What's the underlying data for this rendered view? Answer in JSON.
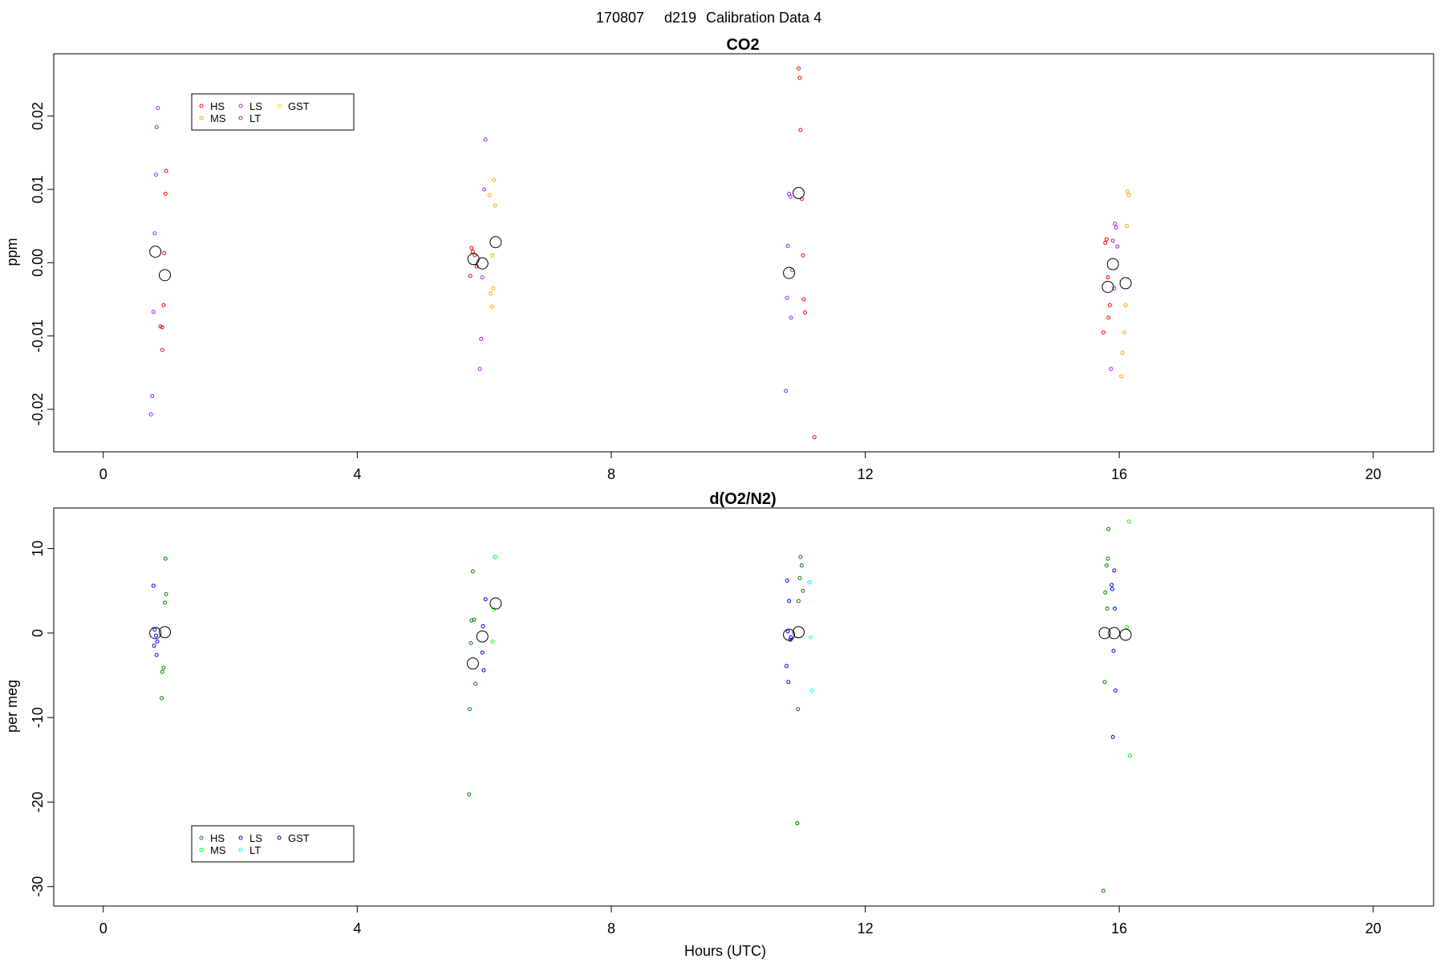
{
  "figure": {
    "header": [
      "170807",
      "d219",
      "Calibration Data 4"
    ],
    "xlabel": "Hours (UTC)"
  },
  "chart_data": [
    {
      "type": "scatter",
      "title": "CO2",
      "xlabel": "",
      "ylabel": "ppm",
      "xlim": [
        -0.78,
        20.95
      ],
      "ylim": [
        -0.0258,
        0.0285
      ],
      "x_ticks": [
        0,
        4,
        8,
        12,
        16,
        20
      ],
      "x_tick_labels": [
        "0",
        "4",
        "8",
        "12",
        "16",
        "20"
      ],
      "y_ticks": [
        -0.02,
        -0.01,
        0.0,
        0.01,
        0.02
      ],
      "y_tick_labels": [
        "-0.02",
        "-0.01",
        "0.00",
        "0.01",
        "0.02"
      ],
      "grid": false,
      "legend": {
        "position": "top-left",
        "columns": 3
      },
      "series": [
        {
          "name": "HS",
          "color": "#ff0000",
          "points": [
            [
              0.99,
              0.0125
            ],
            [
              0.98,
              0.0094
            ],
            [
              0.96,
              0.0013
            ],
            [
              0.95,
              -0.0058
            ],
            [
              0.93,
              -0.0088
            ],
            [
              0.9,
              -0.0087
            ],
            [
              0.93,
              -0.0119
            ],
            [
              5.8,
              0.002
            ],
            [
              5.82,
              0.0015
            ],
            [
              5.85,
              0.001
            ],
            [
              5.88,
              -0.0005
            ],
            [
              5.78,
              -0.0018
            ],
            [
              10.95,
              0.0265
            ],
            [
              10.97,
              0.0252
            ],
            [
              10.98,
              0.0181
            ],
            [
              11.0,
              0.0087
            ],
            [
              11.02,
              0.001
            ],
            [
              11.03,
              -0.005
            ],
            [
              11.05,
              -0.0068
            ],
            [
              11.2,
              -0.0238
            ],
            [
              15.8,
              0.0032
            ],
            [
              15.78,
              0.0027
            ],
            [
              15.82,
              -0.002
            ],
            [
              15.85,
              -0.0058
            ],
            [
              15.83,
              -0.0075
            ],
            [
              15.75,
              -0.0095
            ]
          ]
        },
        {
          "name": "MS",
          "color": "#ffa500",
          "points": [
            [
              6.15,
              0.0113
            ],
            [
              6.08,
              0.0092
            ],
            [
              6.17,
              0.0078
            ],
            [
              6.13,
              0.001
            ],
            [
              6.14,
              -0.0035
            ],
            [
              6.1,
              -0.0042
            ],
            [
              6.12,
              -0.006
            ],
            [
              16.13,
              0.0097
            ],
            [
              16.15,
              0.0092
            ],
            [
              16.12,
              0.005
            ],
            [
              16.1,
              -0.0058
            ],
            [
              16.08,
              -0.0095
            ],
            [
              16.05,
              -0.0123
            ],
            [
              16.03,
              -0.0155
            ]
          ]
        },
        {
          "name": "LS",
          "color": "#a020f0",
          "points": [
            [
              0.86,
              0.0211
            ],
            [
              0.84,
              0.0185
            ],
            [
              0.83,
              0.012
            ],
            [
              0.81,
              0.004
            ],
            [
              0.79,
              -0.0067
            ],
            [
              0.77,
              -0.0182
            ],
            [
              0.75,
              -0.0207
            ],
            [
              6.02,
              0.0168
            ],
            [
              6.0,
              0.01
            ],
            [
              5.97,
              -0.002
            ],
            [
              5.95,
              -0.0104
            ],
            [
              5.93,
              -0.0145
            ],
            [
              10.8,
              0.0094
            ],
            [
              10.82,
              0.009
            ],
            [
              10.78,
              0.0023
            ],
            [
              10.85,
              -0.001
            ],
            [
              10.77,
              -0.0048
            ],
            [
              10.83,
              -0.0075
            ],
            [
              10.75,
              -0.0175
            ],
            [
              15.93,
              0.0053
            ],
            [
              15.95,
              0.0048
            ],
            [
              15.9,
              0.003
            ],
            [
              15.97,
              0.0022
            ],
            [
              15.92,
              -0.0035
            ],
            [
              15.87,
              -0.0145
            ]
          ]
        },
        {
          "name": "LT",
          "color": "#b22222",
          "points": []
        },
        {
          "name": "GST",
          "color": "#ffd700",
          "points": []
        }
      ],
      "means": [
        [
          0.82,
          0.0015
        ],
        [
          0.97,
          -0.0017
        ],
        [
          5.83,
          0.0005
        ],
        [
          5.97,
          -0.0001
        ],
        [
          6.18,
          0.0028
        ],
        [
          10.8,
          -0.0014
        ],
        [
          10.95,
          0.0095
        ],
        [
          15.82,
          -0.0033
        ],
        [
          15.9,
          -0.0002
        ],
        [
          16.1,
          -0.0028
        ]
      ]
    },
    {
      "type": "scatter",
      "title": "d(O2/N2)",
      "xlabel": "Hours (UTC)",
      "ylabel": "per meg",
      "xlim": [
        -0.78,
        20.95
      ],
      "ylim": [
        -32.3,
        14.8
      ],
      "x_ticks": [
        0,
        4,
        8,
        12,
        16,
        20
      ],
      "x_tick_labels": [
        "0",
        "4",
        "8",
        "12",
        "16",
        "20"
      ],
      "y_ticks": [
        -30,
        -20,
        -10,
        0,
        10
      ],
      "y_tick_labels": [
        "-30",
        "-20",
        "-10",
        "0",
        "10"
      ],
      "grid": false,
      "legend": {
        "position": "bottom-left",
        "columns": 3
      },
      "series": [
        {
          "name": "HS",
          "color": "#008000",
          "points": [
            [
              0.98,
              8.8
            ],
            [
              0.99,
              4.6
            ],
            [
              0.97,
              3.6
            ],
            [
              0.95,
              -4.1
            ],
            [
              0.93,
              -4.6
            ],
            [
              0.92,
              -7.7
            ],
            [
              5.82,
              7.3
            ],
            [
              5.84,
              1.6
            ],
            [
              5.8,
              1.5
            ],
            [
              5.79,
              -1.2
            ],
            [
              5.86,
              -6.0
            ],
            [
              5.77,
              -9.0
            ],
            [
              5.76,
              -19.1
            ],
            [
              10.98,
              9.0
            ],
            [
              11.0,
              8.0
            ],
            [
              10.97,
              6.5
            ],
            [
              11.02,
              5.0
            ],
            [
              10.95,
              3.8
            ],
            [
              10.94,
              -9.0
            ],
            [
              10.93,
              -22.5
            ],
            [
              15.83,
              12.3
            ],
            [
              15.82,
              8.8
            ],
            [
              15.8,
              8.0
            ],
            [
              15.78,
              4.8
            ],
            [
              15.81,
              2.9
            ],
            [
              15.77,
              -5.8
            ],
            [
              15.75,
              -30.5
            ]
          ]
        },
        {
          "name": "MS",
          "color": "#00ff00",
          "points": [
            [
              6.17,
              9.0
            ],
            [
              6.15,
              2.8
            ],
            [
              6.13,
              -1.0
            ],
            [
              16.15,
              13.2
            ],
            [
              16.12,
              0.7
            ],
            [
              16.17,
              -14.5
            ]
          ]
        },
        {
          "name": "LS",
          "color": "#0000ff",
          "points": [
            [
              0.79,
              5.6
            ],
            [
              0.81,
              0.4
            ],
            [
              0.83,
              -0.3
            ],
            [
              0.85,
              -1.0
            ],
            [
              0.8,
              -1.5
            ],
            [
              0.84,
              -2.6
            ],
            [
              6.02,
              4.0
            ],
            [
              5.98,
              0.8
            ],
            [
              5.97,
              -2.3
            ],
            [
              5.99,
              -4.4
            ],
            [
              10.77,
              6.2
            ],
            [
              10.8,
              3.8
            ],
            [
              10.78,
              0.2
            ],
            [
              10.82,
              -0.8
            ],
            [
              10.83,
              -0.5
            ],
            [
              10.76,
              -3.9
            ],
            [
              10.79,
              -5.8
            ],
            [
              15.92,
              7.4
            ],
            [
              15.88,
              5.7
            ],
            [
              15.89,
              5.2
            ],
            [
              15.93,
              2.9
            ],
            [
              15.91,
              -2.1
            ],
            [
              15.94,
              -6.8
            ],
            [
              15.9,
              -12.3
            ]
          ]
        },
        {
          "name": "LT",
          "color": "#00ffff",
          "points": [
            [
              11.12,
              6.0
            ],
            [
              11.14,
              -0.5
            ],
            [
              11.16,
              -6.8
            ]
          ]
        },
        {
          "name": "GST",
          "color": "#00008b",
          "points": []
        }
      ],
      "means": [
        [
          0.82,
          0.0
        ],
        [
          0.97,
          0.1
        ],
        [
          5.82,
          -3.6
        ],
        [
          5.97,
          -0.4
        ],
        [
          6.18,
          3.5
        ],
        [
          10.8,
          -0.2
        ],
        [
          10.95,
          0.1
        ],
        [
          15.77,
          0.0
        ],
        [
          15.92,
          0.0
        ],
        [
          16.1,
          -0.2
        ]
      ]
    }
  ]
}
